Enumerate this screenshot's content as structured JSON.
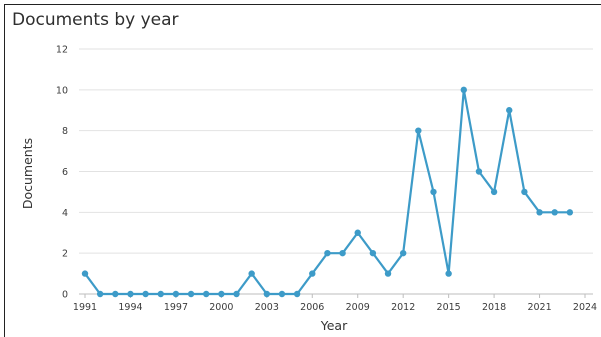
{
  "chart_data": {
    "type": "line",
    "title": "Documents by year",
    "xlabel": "Year",
    "ylabel": "Documents",
    "xlim": [
      1991,
      2024
    ],
    "ylim": [
      0,
      12
    ],
    "x_ticks": [
      1991,
      1994,
      1997,
      2000,
      2003,
      2006,
      2009,
      2012,
      2015,
      2018,
      2021,
      2024
    ],
    "y_ticks": [
      0,
      2,
      4,
      6,
      8,
      10,
      12
    ],
    "grid": true,
    "line_color": "#3d9bc8",
    "series": [
      {
        "x": [
          1991,
          1992,
          1993,
          1994,
          1995,
          1996,
          1997,
          1998,
          1999,
          2000,
          2001,
          2002,
          2003,
          2004,
          2005,
          2006,
          2007,
          2008,
          2009,
          2010,
          2011,
          2012,
          2013,
          2014,
          2015,
          2016,
          2017,
          2018,
          2019,
          2020,
          2021,
          2022,
          2023
        ],
        "y": [
          1,
          0,
          0,
          0,
          0,
          0,
          0,
          0,
          0,
          0,
          0,
          1,
          0,
          0,
          0,
          1,
          2,
          2,
          3,
          2,
          1,
          2,
          8,
          5,
          1,
          10,
          6,
          5,
          9,
          5,
          4,
          4,
          4
        ]
      }
    ]
  }
}
